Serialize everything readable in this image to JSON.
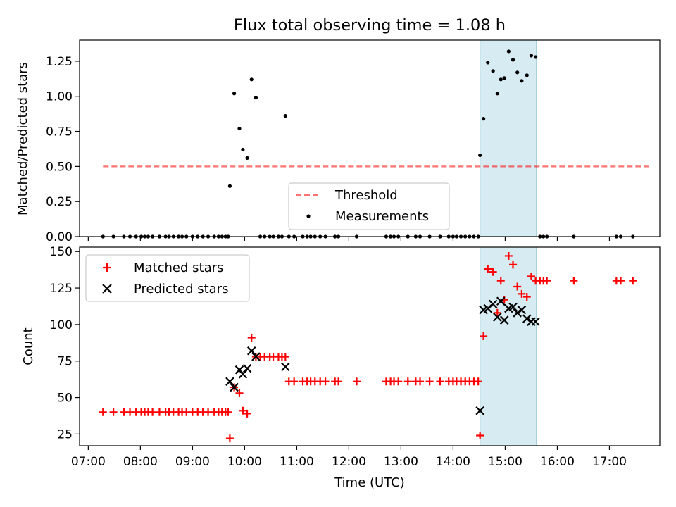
{
  "figure": {
    "title": "Flux total observing time = 1.08 h",
    "xlabel": "Time (UTC)",
    "x_ticks": [
      "07:00",
      "08:00",
      "09:00",
      "10:00",
      "11:00",
      "12:00",
      "13:00",
      "14:00",
      "15:00",
      "16:00",
      "17:00"
    ],
    "xlim": [
      "06:50",
      "17:58"
    ],
    "shaded_interval": [
      "14:31",
      "15:36"
    ],
    "shade_color": "#add8e6"
  },
  "chart_data": [
    {
      "type": "scatter",
      "panel": "top",
      "ylabel": "Matched/Predicted stars",
      "ylim": [
        0,
        1.4
      ],
      "y_ticks": [
        "0.00",
        "0.25",
        "0.50",
        "0.75",
        "1.00",
        "1.25"
      ],
      "legend": {
        "placement": "lower-center",
        "entries": [
          "Threshold",
          "Measurements"
        ]
      },
      "threshold": {
        "name": "Threshold",
        "y": 0.5,
        "x_range": [
          "07:17",
          "17:45"
        ],
        "color": "#ff0000"
      },
      "series": [
        {
          "name": "Measurements",
          "color": "#000000",
          "points": [
            [
              "07:17",
              0.0
            ],
            [
              "07:29",
              0.0
            ],
            [
              "07:41",
              0.0
            ],
            [
              "07:48",
              0.0
            ],
            [
              "07:55",
              0.0
            ],
            [
              "08:01",
              0.0
            ],
            [
              "08:05",
              0.0
            ],
            [
              "08:09",
              0.0
            ],
            [
              "08:14",
              0.0
            ],
            [
              "08:22",
              0.0
            ],
            [
              "08:29",
              0.0
            ],
            [
              "08:33",
              0.0
            ],
            [
              "08:38",
              0.0
            ],
            [
              "08:44",
              0.0
            ],
            [
              "08:48",
              0.0
            ],
            [
              "08:53",
              0.0
            ],
            [
              "09:00",
              0.0
            ],
            [
              "09:06",
              0.0
            ],
            [
              "09:12",
              0.0
            ],
            [
              "09:18",
              0.0
            ],
            [
              "09:25",
              0.0
            ],
            [
              "09:30",
              0.0
            ],
            [
              "09:34",
              0.0
            ],
            [
              "09:38",
              0.0
            ],
            [
              "09:41",
              0.0
            ],
            [
              "09:43",
              0.36
            ],
            [
              "09:48",
              1.02
            ],
            [
              "09:54",
              0.77
            ],
            [
              "09:58",
              0.62
            ],
            [
              "10:03",
              0.56
            ],
            [
              "10:08",
              1.12
            ],
            [
              "10:13",
              0.99
            ],
            [
              "10:18",
              0.0
            ],
            [
              "10:23",
              0.0
            ],
            [
              "10:29",
              0.0
            ],
            [
              "10:33",
              0.0
            ],
            [
              "10:39",
              0.0
            ],
            [
              "10:43",
              0.0
            ],
            [
              "10:47",
              0.86
            ],
            [
              "10:51",
              0.0
            ],
            [
              "10:57",
              0.0
            ],
            [
              "11:07",
              0.0
            ],
            [
              "11:12",
              0.0
            ],
            [
              "11:16",
              0.0
            ],
            [
              "11:21",
              0.0
            ],
            [
              "11:27",
              0.0
            ],
            [
              "11:33",
              0.0
            ],
            [
              "11:44",
              0.0
            ],
            [
              "11:48",
              0.0
            ],
            [
              "12:09",
              0.0
            ],
            [
              "12:43",
              0.0
            ],
            [
              "12:48",
              0.0
            ],
            [
              "12:52",
              0.0
            ],
            [
              "12:57",
              0.0
            ],
            [
              "13:08",
              0.0
            ],
            [
              "13:17",
              0.0
            ],
            [
              "13:22",
              0.0
            ],
            [
              "13:33",
              0.0
            ],
            [
              "13:45",
              0.0
            ],
            [
              "13:55",
              0.0
            ],
            [
              "14:00",
              0.0
            ],
            [
              "14:04",
              0.0
            ],
            [
              "14:09",
              0.0
            ],
            [
              "14:14",
              0.0
            ],
            [
              "14:19",
              0.0
            ],
            [
              "14:24",
              0.0
            ],
            [
              "14:29",
              0.0
            ],
            [
              "14:31",
              0.58
            ],
            [
              "14:35",
              0.84
            ],
            [
              "14:40",
              1.24
            ],
            [
              "14:46",
              1.18
            ],
            [
              "14:51",
              1.02
            ],
            [
              "14:55",
              1.12
            ],
            [
              "14:59",
              1.13
            ],
            [
              "15:04",
              1.32
            ],
            [
              "15:09",
              1.26
            ],
            [
              "15:14",
              1.17
            ],
            [
              "15:19",
              1.11
            ],
            [
              "15:25",
              1.15
            ],
            [
              "15:30",
              1.29
            ],
            [
              "15:35",
              1.28
            ],
            [
              "15:40",
              0.0
            ],
            [
              "15:44",
              0.0
            ],
            [
              "15:48",
              0.0
            ],
            [
              "16:19",
              0.0
            ],
            [
              "17:08",
              0.0
            ],
            [
              "17:13",
              0.0
            ],
            [
              "17:27",
              0.0
            ]
          ]
        }
      ]
    },
    {
      "type": "scatter",
      "panel": "bottom",
      "ylabel": "Count",
      "ylim": [
        17,
        153
      ],
      "y_ticks": [
        "25",
        "50",
        "75",
        "100",
        "125",
        "150"
      ],
      "legend": {
        "placement": "upper-left",
        "entries": [
          "Matched stars",
          "Predicted stars"
        ]
      },
      "series": [
        {
          "name": "Matched stars",
          "marker": "plus",
          "color": "#ff0000",
          "points": [
            [
              "07:17",
              40
            ],
            [
              "07:29",
              40
            ],
            [
              "07:41",
              40
            ],
            [
              "07:48",
              40
            ],
            [
              "07:55",
              40
            ],
            [
              "08:01",
              40
            ],
            [
              "08:05",
              40
            ],
            [
              "08:09",
              40
            ],
            [
              "08:14",
              40
            ],
            [
              "08:22",
              40
            ],
            [
              "08:29",
              40
            ],
            [
              "08:33",
              40
            ],
            [
              "08:38",
              40
            ],
            [
              "08:44",
              40
            ],
            [
              "08:48",
              40
            ],
            [
              "08:53",
              40
            ],
            [
              "09:00",
              40
            ],
            [
              "09:06",
              40
            ],
            [
              "09:12",
              40
            ],
            [
              "09:18",
              40
            ],
            [
              "09:25",
              40
            ],
            [
              "09:30",
              40
            ],
            [
              "09:34",
              40
            ],
            [
              "09:38",
              40
            ],
            [
              "09:41",
              40
            ],
            [
              "09:43",
              22
            ],
            [
              "09:48",
              57
            ],
            [
              "09:54",
              53
            ],
            [
              "09:58",
              41
            ],
            [
              "10:03",
              39
            ],
            [
              "10:08",
              91
            ],
            [
              "10:13",
              78
            ],
            [
              "10:18",
              78
            ],
            [
              "10:23",
              78
            ],
            [
              "10:29",
              78
            ],
            [
              "10:33",
              78
            ],
            [
              "10:39",
              78
            ],
            [
              "10:43",
              78
            ],
            [
              "10:47",
              78
            ],
            [
              "10:51",
              61
            ],
            [
              "10:57",
              61
            ],
            [
              "11:07",
              61
            ],
            [
              "11:12",
              61
            ],
            [
              "11:16",
              61
            ],
            [
              "11:21",
              61
            ],
            [
              "11:27",
              61
            ],
            [
              "11:33",
              61
            ],
            [
              "11:44",
              61
            ],
            [
              "11:48",
              61
            ],
            [
              "12:09",
              61
            ],
            [
              "12:43",
              61
            ],
            [
              "12:48",
              61
            ],
            [
              "12:52",
              61
            ],
            [
              "12:57",
              61
            ],
            [
              "13:08",
              61
            ],
            [
              "13:17",
              61
            ],
            [
              "13:22",
              61
            ],
            [
              "13:33",
              61
            ],
            [
              "13:45",
              61
            ],
            [
              "13:55",
              61
            ],
            [
              "14:00",
              61
            ],
            [
              "14:04",
              61
            ],
            [
              "14:09",
              61
            ],
            [
              "14:14",
              61
            ],
            [
              "14:19",
              61
            ],
            [
              "14:24",
              61
            ],
            [
              "14:29",
              61
            ],
            [
              "14:31",
              24
            ],
            [
              "14:35",
              92
            ],
            [
              "14:40",
              138
            ],
            [
              "14:46",
              136
            ],
            [
              "14:51",
              108
            ],
            [
              "14:55",
              130
            ],
            [
              "14:59",
              117
            ],
            [
              "15:04",
              147
            ],
            [
              "15:09",
              141
            ],
            [
              "15:14",
              126
            ],
            [
              "15:19",
              121
            ],
            [
              "15:25",
              119
            ],
            [
              "15:30",
              133
            ],
            [
              "15:35",
              130
            ],
            [
              "15:40",
              130
            ],
            [
              "15:44",
              130
            ],
            [
              "15:48",
              130
            ],
            [
              "16:19",
              130
            ],
            [
              "17:08",
              130
            ],
            [
              "17:13",
              130
            ],
            [
              "17:27",
              130
            ]
          ]
        },
        {
          "name": "Predicted stars",
          "marker": "x",
          "color": "#000000",
          "points": [
            [
              "09:43",
              61
            ],
            [
              "09:48",
              57
            ],
            [
              "09:54",
              69
            ],
            [
              "09:58",
              66
            ],
            [
              "10:03",
              70
            ],
            [
              "10:08",
              82
            ],
            [
              "10:13",
              78
            ],
            [
              "10:47",
              71
            ],
            [
              "14:31",
              41
            ],
            [
              "14:35",
              110
            ],
            [
              "14:40",
              111
            ],
            [
              "14:46",
              114
            ],
            [
              "14:51",
              105
            ],
            [
              "14:55",
              116
            ],
            [
              "14:59",
              103
            ],
            [
              "15:04",
              111
            ],
            [
              "15:09",
              112
            ],
            [
              "15:14",
              108
            ],
            [
              "15:19",
              110
            ],
            [
              "15:25",
              104
            ],
            [
              "15:30",
              102
            ],
            [
              "15:35",
              102
            ]
          ]
        }
      ]
    }
  ]
}
